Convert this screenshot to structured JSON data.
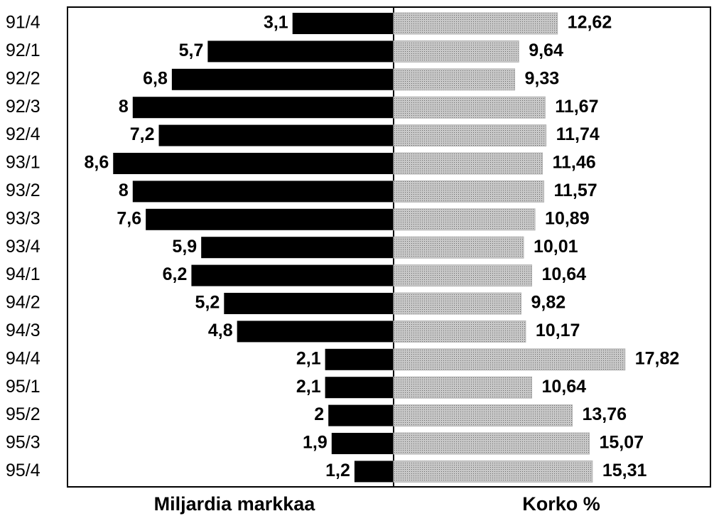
{
  "chart_data": {
    "type": "butterfly",
    "categories": [
      "91/4",
      "92/1",
      "92/2",
      "92/3",
      "92/4",
      "93/1",
      "93/2",
      "93/3",
      "93/4",
      "94/1",
      "94/2",
      "94/3",
      "94/4",
      "95/1",
      "95/2",
      "95/3",
      "95/4"
    ],
    "series": [
      {
        "name": "Miljardia markkaa",
        "color": "#000000",
        "xlim": [
          0,
          10
        ],
        "values": [
          3.1,
          5.7,
          6.8,
          8,
          7.2,
          8.6,
          8,
          7.6,
          5.9,
          6.2,
          5.2,
          4.8,
          2.1,
          2.1,
          2,
          1.9,
          1.2
        ],
        "value_labels": [
          "3,1",
          "5,7",
          "6,8",
          "8",
          "7,2",
          "8,6",
          "8",
          "7,6",
          "5,9",
          "6,2",
          "5,2",
          "4,8",
          "2,1",
          "2,1",
          "2",
          "1,9",
          "1,2"
        ]
      },
      {
        "name": "Korko %",
        "color": "#b4b4b4",
        "xlim": [
          0,
          24.4
        ],
        "values": [
          12.62,
          9.64,
          9.33,
          11.67,
          11.74,
          11.46,
          11.57,
          10.89,
          10.01,
          10.64,
          9.82,
          10.17,
          17.82,
          10.64,
          13.76,
          15.07,
          15.31
        ],
        "value_labels": [
          "12,62",
          "9,64",
          "9,33",
          "11,67",
          "11,74",
          "11,46",
          "11,57",
          "10,89",
          "10,01",
          "10,64",
          "9,82",
          "10,17",
          "17,82",
          "10,64",
          "13,76",
          "15,07",
          "15,31"
        ]
      }
    ]
  }
}
